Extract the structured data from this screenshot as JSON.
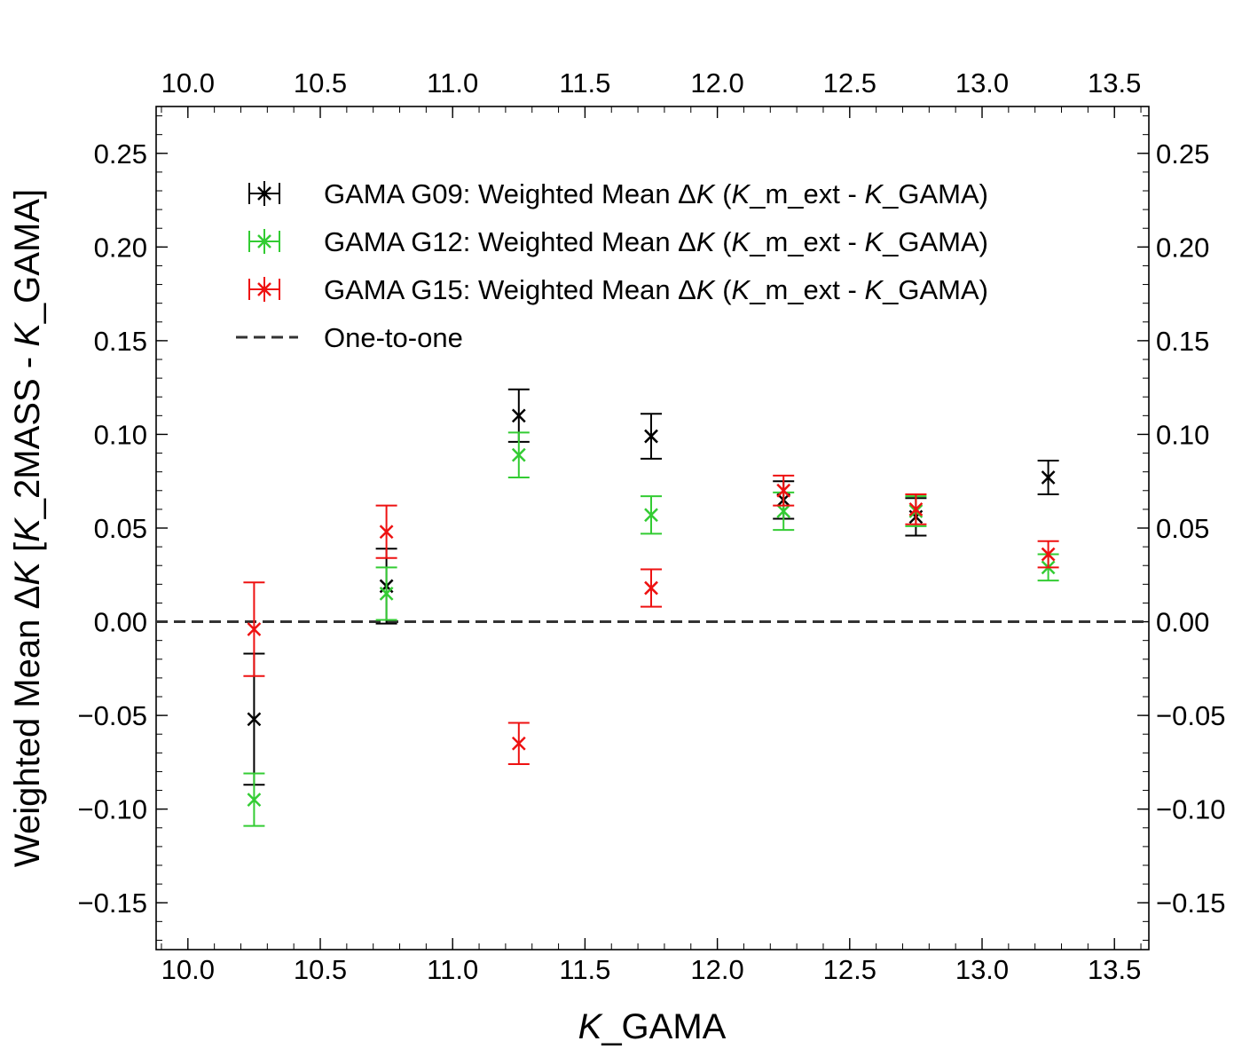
{
  "chart_data": {
    "type": "scatter",
    "title": "",
    "xlabel_italic": "K",
    "xlabel_rest": "_GAMA",
    "ylabel_parts": [
      "Weighted Mean Δ",
      "K",
      " [",
      "K",
      "_2MASS - ",
      "K",
      "_GAMA]"
    ],
    "xlim": [
      9.88,
      13.63
    ],
    "ylim": [
      -0.175,
      0.275
    ],
    "x_ticks": [
      10.0,
      10.5,
      11.0,
      11.5,
      12.0,
      12.5,
      13.0,
      13.5
    ],
    "x_tick_labels": [
      "10.0",
      "10.5",
      "11.0",
      "11.5",
      "12.0",
      "12.5",
      "13.0",
      "13.5"
    ],
    "y_ticks": [
      -0.15,
      -0.1,
      -0.05,
      0.0,
      0.05,
      0.1,
      0.15,
      0.2,
      0.25
    ],
    "y_tick_labels": [
      "−0.15",
      "−0.10",
      "−0.05",
      "0.00",
      "0.05",
      "0.10",
      "0.15",
      "0.20",
      "0.25"
    ],
    "x_minor_step": 0.1,
    "y_minor_step": 0.01,
    "reference_line": {
      "name": "One-to-one",
      "y": 0.0,
      "color": "#333333"
    },
    "legend_position": "upper-left",
    "series": [
      {
        "name_prefix": "GAMA G09: Weighted Mean Δ",
        "color": "#000000",
        "x": [
          10.25,
          10.75,
          11.25,
          11.75,
          12.25,
          12.75,
          13.25
        ],
        "y": [
          -0.052,
          0.019,
          0.11,
          0.099,
          0.065,
          0.056,
          0.077
        ],
        "err": [
          0.035,
          0.02,
          0.014,
          0.012,
          0.01,
          0.01,
          0.009
        ]
      },
      {
        "name_prefix": "GAMA G12: Weighted Mean Δ",
        "color": "#33cc33",
        "x": [
          10.25,
          10.75,
          11.25,
          11.75,
          12.25,
          12.75,
          13.25
        ],
        "y": [
          -0.095,
          0.015,
          0.089,
          0.057,
          0.059,
          0.059,
          0.029
        ],
        "err": [
          0.014,
          0.014,
          0.012,
          0.01,
          0.01,
          0.008,
          0.007
        ]
      },
      {
        "name_prefix": "GAMA G15: Weighted Mean Δ",
        "color": "#ee1111",
        "x": [
          10.25,
          10.75,
          11.25,
          11.75,
          12.25,
          12.75,
          13.25
        ],
        "y": [
          -0.004,
          0.048,
          -0.065,
          0.018,
          0.07,
          0.06,
          0.036
        ],
        "err": [
          0.025,
          0.014,
          0.011,
          0.01,
          0.008,
          0.008,
          0.007
        ]
      }
    ],
    "legend_suffix_parts": [
      "K",
      " (",
      "K",
      "_m_ext - ",
      "K",
      "_GAMA)"
    ]
  }
}
